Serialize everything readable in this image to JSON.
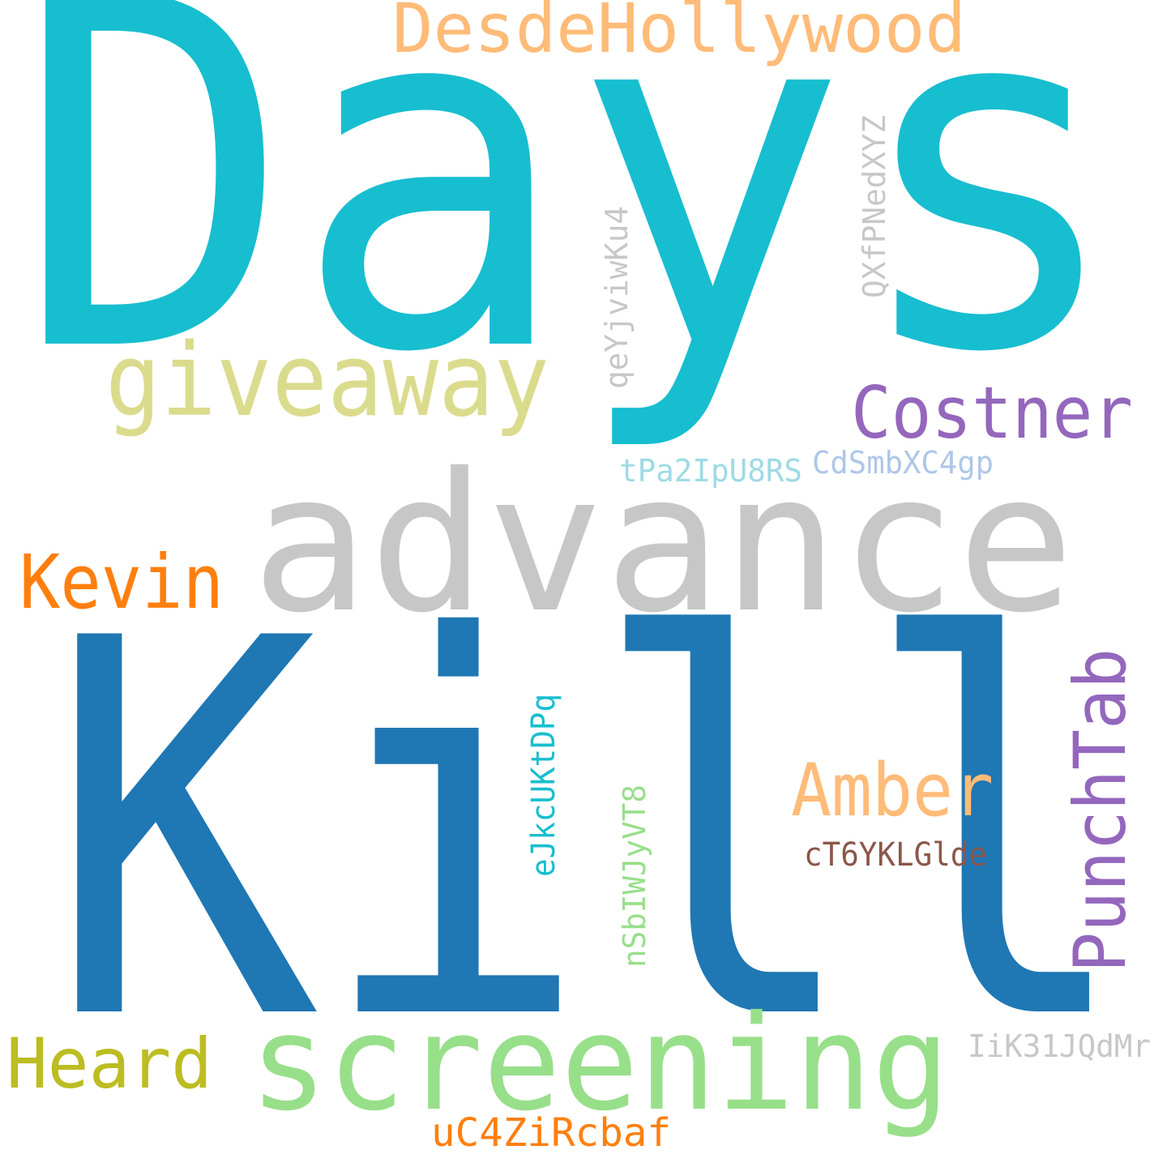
{
  "words": [
    {
      "text": "Days",
      "color": "#17becf"
    },
    {
      "text": "Kill",
      "color": "#1f77b4"
    },
    {
      "text": "advance",
      "color": "#c7c7c7"
    },
    {
      "text": "screening",
      "color": "#98df8a"
    },
    {
      "text": "giveaway",
      "color": "#dbdb8d"
    },
    {
      "text": "DesdeHollywood",
      "color": "#ffbb78"
    },
    {
      "text": "Costner",
      "color": "#9467bd"
    },
    {
      "text": "Kevin",
      "color": "#ff7f0e"
    },
    {
      "text": "Amber",
      "color": "#ffbb78"
    },
    {
      "text": "PunchTab",
      "color": "#9467bd"
    },
    {
      "text": "Heard",
      "color": "#bcbd22"
    },
    {
      "text": "uC4ZiRcbaf",
      "color": "#ff7f0e"
    },
    {
      "text": "cT6YKLGlde",
      "color": "#8c564b"
    },
    {
      "text": "IiK31JQdMr",
      "color": "#c7c7c7"
    },
    {
      "text": "CdSmbXC4gp",
      "color": "#aec7e8"
    },
    {
      "text": "tPa2IpU8RS",
      "color": "#9edae5"
    },
    {
      "text": "QXfPNedXYZ",
      "color": "#c7c7c7"
    },
    {
      "text": "qeYjviwKu4",
      "color": "#c7c7c7"
    },
    {
      "text": "eJkcUKtDPq",
      "color": "#17becf"
    },
    {
      "text": "nSbIWJyVT8",
      "color": "#98df8a"
    }
  ]
}
